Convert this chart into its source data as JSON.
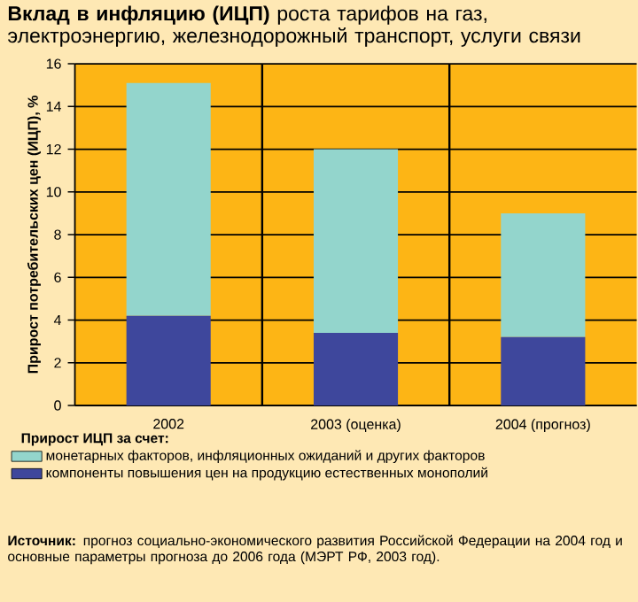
{
  "chart_data": {
    "type": "bar",
    "stacked": true,
    "title": "**Вклад в инфляцию (ИЦП)** роста тарифов на газ, электроэнергию, железнодорожный транспорт, услуги связи",
    "ylabel": "Прирост потребительских цен (ИЦП), %",
    "categories": [
      "2002",
      "2003 (оценка)",
      "2004 (прогноз)"
    ],
    "series": [
      {
        "name": "компоненты повышения цен на продукцию естественных монополий",
        "color": "#3e479c",
        "values": [
          4.2,
          3.4,
          3.2
        ]
      },
      {
        "name": "монетарных факторов, инфляционных ожиданий и других факторов",
        "color": "#93d5cc",
        "values": [
          10.9,
          8.6,
          5.8
        ]
      }
    ],
    "ylim": [
      0,
      16
    ],
    "yticks": [
      0,
      2,
      4,
      6,
      8,
      10,
      12,
      14,
      16
    ],
    "grid": "y",
    "legend": "bottom",
    "legend_title": "Прирост ИЦП за счет:",
    "annotations": [
      "**Источник:** прогноз социально-экономического развития Российской Федерации на 2004 год и основные параметры прогноза до 2006 года (МЭРТ РФ, 2003 год)."
    ]
  }
}
